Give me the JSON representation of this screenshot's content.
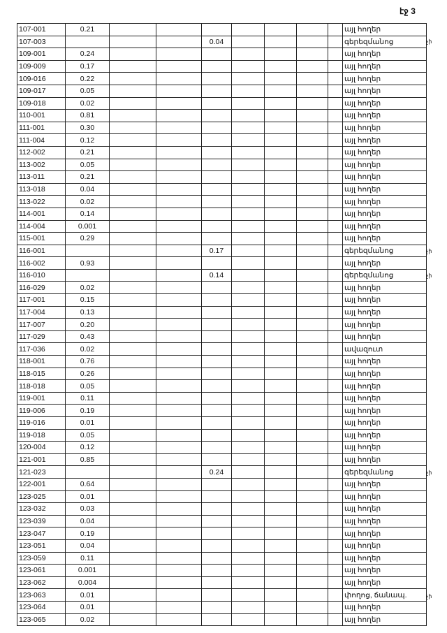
{
  "page_label": "էջ 3",
  "rows": [
    {
      "id": "107-001",
      "area": "0.21",
      "cemetery": "",
      "use": "այլ հողեր",
      "note": ""
    },
    {
      "id": "107-003",
      "area": "",
      "cemetery": "0.04",
      "use": "գերեզմանոց",
      "note": "չի"
    },
    {
      "id": "109-001",
      "area": "0.24",
      "cemetery": "",
      "use": "այլ հողեր",
      "note": ""
    },
    {
      "id": "109-009",
      "area": "0.17",
      "cemetery": "",
      "use": "այլ հողեր",
      "note": ""
    },
    {
      "id": "109-016",
      "area": "0.22",
      "cemetery": "",
      "use": "այլ հողեր",
      "note": ""
    },
    {
      "id": "109-017",
      "area": "0.05",
      "cemetery": "",
      "use": "այլ հողեր",
      "note": ""
    },
    {
      "id": "109-018",
      "area": "0.02",
      "cemetery": "",
      "use": "այլ հողեր",
      "note": ""
    },
    {
      "id": "110-001",
      "area": "0.81",
      "cemetery": "",
      "use": "այլ հողեր",
      "note": ""
    },
    {
      "id": "111-001",
      "area": "0.30",
      "cemetery": "",
      "use": "այլ հողեր",
      "note": ""
    },
    {
      "id": "111-004",
      "area": "0.12",
      "cemetery": "",
      "use": "այլ հողեր",
      "note": ""
    },
    {
      "id": "112-002",
      "area": "0.21",
      "cemetery": "",
      "use": "այլ հողեր",
      "note": ""
    },
    {
      "id": "113-002",
      "area": "0.05",
      "cemetery": "",
      "use": "այլ հողեր",
      "note": ""
    },
    {
      "id": "113-011",
      "area": "0.21",
      "cemetery": "",
      "use": "այլ հողեր",
      "note": ""
    },
    {
      "id": "113-018",
      "area": "0.04",
      "cemetery": "",
      "use": "այլ հողեր",
      "note": ""
    },
    {
      "id": "113-022",
      "area": "0.02",
      "cemetery": "",
      "use": "այլ հողեր",
      "note": ""
    },
    {
      "id": "114-001",
      "area": "0.14",
      "cemetery": "",
      "use": "այլ հողեր",
      "note": ""
    },
    {
      "id": "114-004",
      "area": "0.001",
      "cemetery": "",
      "use": "այլ հողեր",
      "note": ""
    },
    {
      "id": "115-001",
      "area": "0.29",
      "cemetery": "",
      "use": "այլ հողեր",
      "note": ""
    },
    {
      "id": "116-001",
      "area": "",
      "cemetery": "0.17",
      "use": "գերեզմանոց",
      "note": "չի"
    },
    {
      "id": "116-002",
      "area": "0.93",
      "cemetery": "",
      "use": "այլ հողեր",
      "note": ""
    },
    {
      "id": "116-010",
      "area": "",
      "cemetery": "0.14",
      "use": "գերեզմանոց",
      "note": "չի"
    },
    {
      "id": "116-029",
      "area": "0.02",
      "cemetery": "",
      "use": "այլ հողեր",
      "note": ""
    },
    {
      "id": "117-001",
      "area": "0.15",
      "cemetery": "",
      "use": "այլ հողեր",
      "note": ""
    },
    {
      "id": "117-004",
      "area": "0.13",
      "cemetery": "",
      "use": "այլ հողեր",
      "note": ""
    },
    {
      "id": "117-007",
      "area": "0.20",
      "cemetery": "",
      "use": "այլ հողեր",
      "note": ""
    },
    {
      "id": "117-029",
      "area": "0.43",
      "cemetery": "",
      "use": "այլ հողեր",
      "note": ""
    },
    {
      "id": "117-036",
      "area": "0.02",
      "cemetery": "",
      "use": "ավազուտ",
      "note": ""
    },
    {
      "id": "118-001",
      "area": "0.76",
      "cemetery": "",
      "use": "այլ հողեր",
      "note": ""
    },
    {
      "id": "118-015",
      "area": "0.26",
      "cemetery": "",
      "use": "այլ հողեր",
      "note": ""
    },
    {
      "id": "118-018",
      "area": "0.05",
      "cemetery": "",
      "use": "այլ հողեր",
      "note": ""
    },
    {
      "id": "119-001",
      "area": "0.11",
      "cemetery": "",
      "use": "այլ հողեր",
      "note": ""
    },
    {
      "id": "119-006",
      "area": "0.19",
      "cemetery": "",
      "use": "այլ հողեր",
      "note": ""
    },
    {
      "id": "119-016",
      "area": "0.01",
      "cemetery": "",
      "use": "այլ հողեր",
      "note": ""
    },
    {
      "id": "119-018",
      "area": "0.05",
      "cemetery": "",
      "use": "այլ հողեր",
      "note": ""
    },
    {
      "id": "120-004",
      "area": "0.12",
      "cemetery": "",
      "use": "այլ հողեր",
      "note": ""
    },
    {
      "id": "121-001",
      "area": "0.85",
      "cemetery": "",
      "use": "այլ հողեր",
      "note": ""
    },
    {
      "id": "121-023",
      "area": "",
      "cemetery": "0.24",
      "use": "գերեզմանոց",
      "note": "չի"
    },
    {
      "id": "122-001",
      "area": "0.64",
      "cemetery": "",
      "use": "այլ հողեր",
      "note": ""
    },
    {
      "id": "123-025",
      "area": "0.01",
      "cemetery": "",
      "use": "այլ հողեր",
      "note": ""
    },
    {
      "id": "123-032",
      "area": "0.03",
      "cemetery": "",
      "use": "այլ հողեր",
      "note": ""
    },
    {
      "id": "123-039",
      "area": "0.04",
      "cemetery": "",
      "use": "այլ հողեր",
      "note": ""
    },
    {
      "id": "123-047",
      "area": "0.19",
      "cemetery": "",
      "use": "այլ հողեր",
      "note": ""
    },
    {
      "id": "123-051",
      "area": "0.04",
      "cemetery": "",
      "use": "այլ հողեր",
      "note": ""
    },
    {
      "id": "123-059",
      "area": "0.11",
      "cemetery": "",
      "use": "այլ հողեր",
      "note": ""
    },
    {
      "id": "123-061",
      "area": "0.001",
      "cemetery": "",
      "use": "այլ հողեր",
      "note": ""
    },
    {
      "id": "123-062",
      "area": "0.004",
      "cemetery": "",
      "use": "այլ հողեր",
      "note": ""
    },
    {
      "id": "123-063",
      "area": "0.01",
      "cemetery": "",
      "use": "փողոց, ճանապ.",
      "note": "չի"
    },
    {
      "id": "123-064",
      "area": "0.01",
      "cemetery": "",
      "use": "այլ հողեր",
      "note": ""
    },
    {
      "id": "123-065",
      "area": "0.02",
      "cemetery": "",
      "use": "այլ հողեր",
      "note": ""
    }
  ]
}
